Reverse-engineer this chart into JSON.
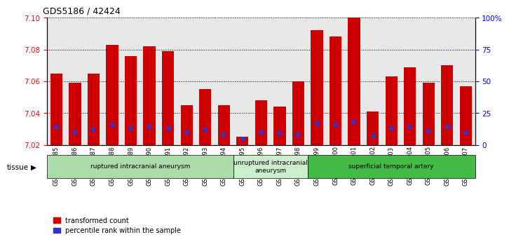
{
  "title": "GDS5186 / 42424",
  "samples": [
    "GSM1306885",
    "GSM1306886",
    "GSM1306887",
    "GSM1306888",
    "GSM1306889",
    "GSM1306890",
    "GSM1306891",
    "GSM1306892",
    "GSM1306893",
    "GSM1306894",
    "GSM1306895",
    "GSM1306896",
    "GSM1306897",
    "GSM1306898",
    "GSM1306899",
    "GSM1306900",
    "GSM1306901",
    "GSM1306902",
    "GSM1306903",
    "GSM1306904",
    "GSM1306905",
    "GSM1306906",
    "GSM1306907"
  ],
  "transformed_count": [
    7.065,
    7.059,
    7.065,
    7.083,
    7.076,
    7.082,
    7.079,
    7.045,
    7.055,
    7.045,
    7.025,
    7.048,
    7.044,
    7.06,
    7.092,
    7.088,
    7.1,
    7.041,
    7.063,
    7.069,
    7.059,
    7.07,
    7.057
  ],
  "percentile_rank": [
    14,
    10,
    12,
    16,
    13,
    14,
    13,
    10,
    12,
    8,
    5,
    10,
    9,
    8,
    17,
    16,
    18,
    7,
    13,
    14,
    11,
    14,
    10
  ],
  "ylim_left": [
    7.02,
    7.1
  ],
  "yticks_left": [
    7.02,
    7.04,
    7.06,
    7.08,
    7.1
  ],
  "yticks_right": [
    0,
    25,
    50,
    75,
    100
  ],
  "ytick_right_labels": [
    "0",
    "25",
    "50",
    "75",
    "100%"
  ],
  "bar_color": "#cc0000",
  "dot_color": "#3333cc",
  "plot_bg": "#e8e8e8",
  "groups": [
    {
      "label": "ruptured intracranial aneurysm",
      "start": 0,
      "end": 10,
      "color": "#aaddaa"
    },
    {
      "label": "unruptured intracranial\naneurysm",
      "start": 10,
      "end": 14,
      "color": "#cceecc"
    },
    {
      "label": "superficial temporal artery",
      "start": 14,
      "end": 23,
      "color": "#44bb44"
    }
  ]
}
